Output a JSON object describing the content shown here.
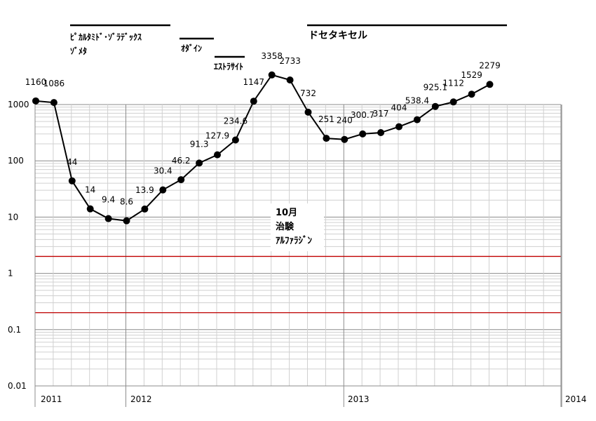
{
  "chart_data": {
    "type": "line",
    "yscale": "log",
    "ylim": [
      0.01,
      1000
    ],
    "yticks": [
      "1000",
      "100",
      "10",
      "1",
      "0.1",
      "0.01"
    ],
    "x_year_labels": [
      "2011",
      "2012",
      "2013",
      "2014"
    ],
    "grid": "on",
    "values": [
      1160,
      1086,
      44,
      14,
      9.4,
      8.6,
      13.9,
      30.4,
      46.2,
      91.3,
      127.9,
      234.6,
      1147,
      3358,
      2733,
      732,
      251,
      240,
      300.7,
      317,
      404,
      538.4,
      925.1,
      1112,
      1529,
      2279
    ],
    "data_labels": [
      "1160",
      "1086",
      "44",
      "14",
      "9.4",
      "8.6",
      "13.9",
      "30.4",
      "46.2",
      "91.3",
      "127.9",
      "234.6",
      "1147",
      "3358",
      "2733",
      "732",
      "251",
      "240",
      "300.7",
      "317",
      "404",
      "538.4",
      "925.1",
      "1112",
      "1529",
      "2279"
    ],
    "reference_lines": [
      2,
      0.2
    ],
    "reference_line_color": "#c00000",
    "line_color": "#000000",
    "annotations": {
      "drug1_line1": "ﾋﾟｶﾙﾀﾐﾄﾞ･ｿﾞﾗﾃﾞｯｸｽ",
      "drug1_line2": "ｿﾞﾒﾀ",
      "drug2": "ｵﾀﾞｲﾝ",
      "drug3": "ｴｽﾄﾗｻｲﾄ",
      "drug4": "ドセタキセル",
      "note_line1": "10月",
      "note_line2": "治験",
      "note_line3": "ｱﾙﾌｧﾗｼﾞﾝ"
    }
  }
}
